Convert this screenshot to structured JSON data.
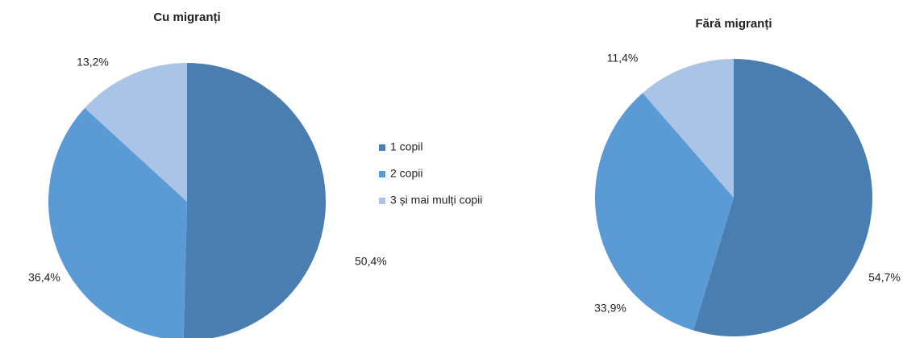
{
  "legend": {
    "labels": [
      "1 copil",
      "2 copii",
      "3 și mai mulți copii"
    ],
    "colors": [
      "#4a7eb0",
      "#5b9bd5",
      "#a9c4e6"
    ]
  },
  "chart_data": [
    {
      "type": "pie",
      "title": "Cu migranți",
      "values": [
        50.4,
        36.4,
        13.2
      ],
      "value_labels": [
        "50,4%",
        "36,4%",
        "13,2%"
      ]
    },
    {
      "type": "pie",
      "title": "Fără migranți",
      "values": [
        54.7,
        33.9,
        11.4
      ],
      "value_labels": [
        "54,7%",
        "33,9%",
        "11,4%"
      ]
    }
  ]
}
